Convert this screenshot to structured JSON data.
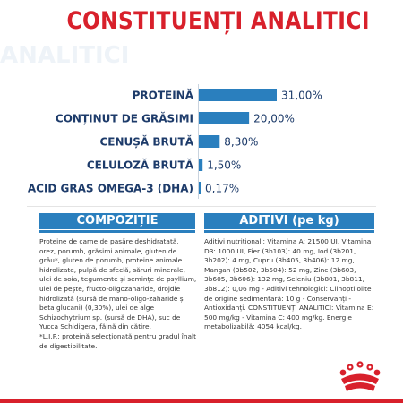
{
  "page": {
    "title": "CONSTITUENȚI ANALITICI",
    "watermark": "ANALITICI"
  },
  "colors": {
    "brand_red": "#d8202b",
    "bar_blue": "#2a7fbe",
    "label_navy": "#1d3b6a"
  },
  "chart_data": {
    "type": "bar",
    "orientation": "horizontal",
    "categories": [
      "PROTEINĂ",
      "CONȚINUT DE GRĂSIMI",
      "CENUȘĂ BRUTĂ",
      "CELULOZĂ BRUTĂ",
      "ACID GRAS OMEGA-3 (DHA)"
    ],
    "values": [
      31.0,
      20.0,
      8.3,
      1.5,
      0.17
    ],
    "value_labels": [
      "31,00%",
      "20,00%",
      "8,30%",
      "1,50%",
      "0,17%"
    ],
    "unit": "%",
    "xlim": [
      0,
      31
    ],
    "grid": false,
    "legend": "none"
  },
  "composition": {
    "header": "COMPOZIȚIE",
    "text": "Proteine de carne de pasăre deshidratată, orez, porumb, grăsimi animale, gluten de grâu*, gluten de porumb, proteine animale hidrolizate, pulpă de sfeclă, săruri minerale, ulei de soia, tegumente și semințe de psyllium, ulei de pește, fructo-oligozaharide, drojdie hidrolizată (sursă de mano-oligo-zaharide și beta glucani) (0,30%), ulei de alge Schizochytrium sp. (sursă de DHA), suc de Yucca Schidigera, făină din cătire.\n*L.I.P.: proteină selecționată pentru gradul înalt de digestibilitate."
  },
  "additives": {
    "header": "ADITIVI (pe kg)",
    "text": "Aditivi nutriționali: Vitamina A: 21500 UI, Vitamina D3: 1000 UI, Fier (3b103): 40 mg, Iod (3b201, 3b202): 4 mg, Cupru (3b405, 3b406): 12 mg, Mangan (3b502, 3b504): 52 mg, Zinc (3b603, 3b605, 3b606): 132 mg, Seleniu (3b801, 3b811, 3b812): 0,06 mg - Aditivi tehnologici: Clinoptilolite de origine sedimentară: 10 g - Conservanți - Antioxidanți. CONSTITUENȚI ANALITICI: Vitamina E: 500 mg/kg - Vitamina C: 400 mg/kg. Energie metabolizabilă: 4054 kcal/kg."
  },
  "logo": {
    "icon": "royal-crown-logo"
  }
}
